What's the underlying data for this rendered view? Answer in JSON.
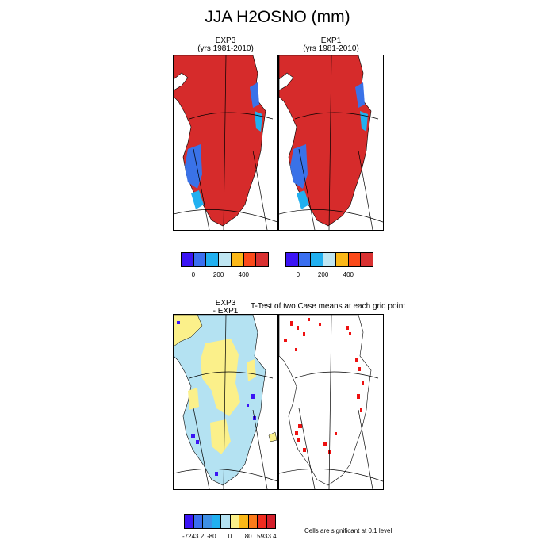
{
  "page": {
    "title": "JJA H2OSNO (mm)"
  },
  "panels": {
    "exp3": {
      "line1": "EXP3",
      "line2": "(yrs 1981-2010)"
    },
    "exp1": {
      "line1": "EXP1",
      "line2": "(yrs 1981-2010)"
    },
    "diff": {
      "line1": "EXP3",
      "line2": "- EXP1"
    },
    "ttest": {
      "title": "T-Test of two Case means at each grid point"
    }
  },
  "colorbar_top": {
    "colors": [
      "#3b14f5",
      "#3a6ff0",
      "#21b0f0",
      "#bfe6f2",
      "#fbb818",
      "#fb4a1a",
      "#d93131"
    ],
    "labels": [
      "0",
      "200",
      "400"
    ]
  },
  "colorbar_bottom": {
    "colors": [
      "#3b14f5",
      "#3a6ff0",
      "#3e90e6",
      "#21b0f0",
      "#b4e2f2",
      "#fbf08a",
      "#fbb818",
      "#fb7a1a",
      "#f02c1f",
      "#d41f2b"
    ],
    "labels": [
      "-7243.2",
      "-80",
      "0",
      "80",
      "5933.4"
    ]
  },
  "footer": {
    "significance_note": "Cells are significant at 0.1 level"
  },
  "colors": {
    "exp_snow": "#d62b2b",
    "exp_land_low": "#3a72e8",
    "exp_land_mid": "#21b0f0",
    "diff_ice": "#b4e2f2",
    "diff_patch": "#fbf08a",
    "sig_cell": "#ee1111"
  }
}
